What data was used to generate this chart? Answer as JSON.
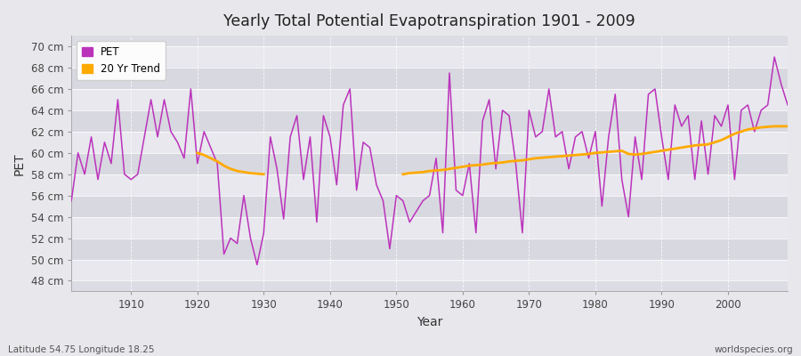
{
  "title": "Yearly Total Potential Evapotranspiration 1901 - 2009",
  "xlabel": "Year",
  "ylabel": "PET",
  "lat_lon_text": "Latitude 54.75 Longitude 18.25",
  "watermark": "worldspecies.org",
  "pet_color": "#bb33bb",
  "trend_color": "#ffaa00",
  "background_color": "#e8e8ec",
  "plot_bg_color": "#dcdce4",
  "band_color_light": "#e8e8ee",
  "band_color_dark": "#d8d8e0",
  "years": [
    1901,
    1902,
    1903,
    1904,
    1905,
    1906,
    1907,
    1908,
    1909,
    1910,
    1911,
    1912,
    1913,
    1914,
    1915,
    1916,
    1917,
    1918,
    1919,
    1920,
    1921,
    1922,
    1923,
    1924,
    1925,
    1926,
    1927,
    1928,
    1929,
    1930,
    1931,
    1932,
    1933,
    1934,
    1935,
    1936,
    1937,
    1938,
    1939,
    1940,
    1941,
    1942,
    1943,
    1944,
    1945,
    1946,
    1947,
    1948,
    1949,
    1950,
    1951,
    1952,
    1953,
    1954,
    1955,
    1956,
    1957,
    1958,
    1959,
    1960,
    1961,
    1962,
    1963,
    1964,
    1965,
    1966,
    1967,
    1968,
    1969,
    1970,
    1971,
    1972,
    1973,
    1974,
    1975,
    1976,
    1977,
    1978,
    1979,
    1980,
    1981,
    1982,
    1983,
    1984,
    1985,
    1986,
    1987,
    1988,
    1989,
    1990,
    1991,
    1992,
    1993,
    1994,
    1995,
    1996,
    1997,
    1998,
    1999,
    2000,
    2001,
    2002,
    2003,
    2004,
    2005,
    2006,
    2007,
    2008,
    2009
  ],
  "pet_values": [
    55.5,
    60.0,
    58.0,
    61.5,
    57.5,
    61.0,
    59.0,
    65.0,
    58.0,
    57.5,
    58.0,
    61.5,
    65.0,
    61.5,
    65.0,
    62.0,
    61.0,
    59.5,
    66.0,
    59.0,
    62.0,
    60.5,
    59.0,
    50.5,
    52.0,
    51.5,
    56.0,
    52.0,
    49.5,
    52.5,
    61.5,
    58.5,
    53.8,
    61.5,
    63.5,
    57.5,
    61.5,
    53.5,
    63.5,
    61.5,
    57.0,
    64.5,
    66.0,
    56.5,
    61.0,
    60.5,
    57.0,
    55.5,
    51.0,
    56.0,
    55.5,
    53.5,
    54.5,
    55.5,
    56.0,
    59.5,
    52.5,
    67.5,
    56.5,
    56.0,
    59.0,
    52.5,
    63.0,
    65.0,
    58.5,
    64.0,
    63.5,
    59.0,
    52.5,
    64.0,
    61.5,
    62.0,
    66.0,
    61.5,
    62.0,
    58.5,
    61.5,
    62.0,
    59.5,
    62.0,
    55.0,
    61.5,
    65.5,
    57.5,
    54.0,
    61.5,
    57.5,
    65.5,
    66.0,
    61.5,
    57.5,
    64.5,
    62.5,
    63.5,
    57.5,
    63.0,
    58.0,
    63.5,
    62.5,
    64.5,
    57.5,
    64.0,
    64.5,
    62.0,
    64.0,
    64.5,
    69.0,
    66.5,
    64.5
  ],
  "trend1_years": [
    1920,
    1921,
    1922,
    1923,
    1924,
    1925,
    1926,
    1927,
    1928,
    1929,
    1930
  ],
  "trend1_values": [
    60.0,
    59.8,
    59.5,
    59.2,
    58.8,
    58.5,
    58.3,
    58.2,
    58.1,
    58.05,
    58.0
  ],
  "trend2_years": [
    1951,
    1952,
    1953,
    1954,
    1955,
    1956,
    1957,
    1958,
    1959,
    1960,
    1961,
    1962,
    1963,
    1964,
    1965,
    1966,
    1967,
    1968,
    1969,
    1970,
    1971,
    1972,
    1973,
    1974,
    1975,
    1976,
    1977,
    1978,
    1979,
    1980,
    1981,
    1982,
    1983,
    1984,
    1985,
    1986,
    1987,
    1988,
    1989,
    1990,
    1991,
    1992,
    1993,
    1994,
    1995,
    1996,
    1997,
    1998,
    1999,
    2000,
    2001,
    2002,
    2003,
    2004,
    2005,
    2006,
    2007,
    2008,
    2009
  ],
  "trend2_values": [
    58.0,
    58.1,
    58.15,
    58.2,
    58.3,
    58.35,
    58.4,
    58.5,
    58.6,
    58.7,
    58.8,
    58.85,
    58.9,
    59.0,
    59.05,
    59.1,
    59.2,
    59.25,
    59.3,
    59.4,
    59.5,
    59.55,
    59.6,
    59.65,
    59.7,
    59.75,
    59.8,
    59.85,
    59.9,
    60.0,
    60.05,
    60.1,
    60.15,
    60.2,
    59.9,
    59.85,
    59.9,
    60.0,
    60.1,
    60.2,
    60.3,
    60.4,
    60.5,
    60.6,
    60.7,
    60.75,
    60.8,
    61.0,
    61.2,
    61.5,
    61.8,
    62.0,
    62.2,
    62.3,
    62.4,
    62.45,
    62.5,
    62.5,
    62.5
  ],
  "ylim": [
    47,
    71
  ],
  "yticks": [
    48,
    50,
    52,
    54,
    56,
    58,
    60,
    62,
    64,
    66,
    68,
    70
  ],
  "xticks": [
    1910,
    1920,
    1930,
    1940,
    1950,
    1960,
    1970,
    1980,
    1990,
    2000
  ],
  "legend_labels": [
    "PET",
    "20 Yr Trend"
  ],
  "xmin": 1901,
  "xmax": 2009
}
